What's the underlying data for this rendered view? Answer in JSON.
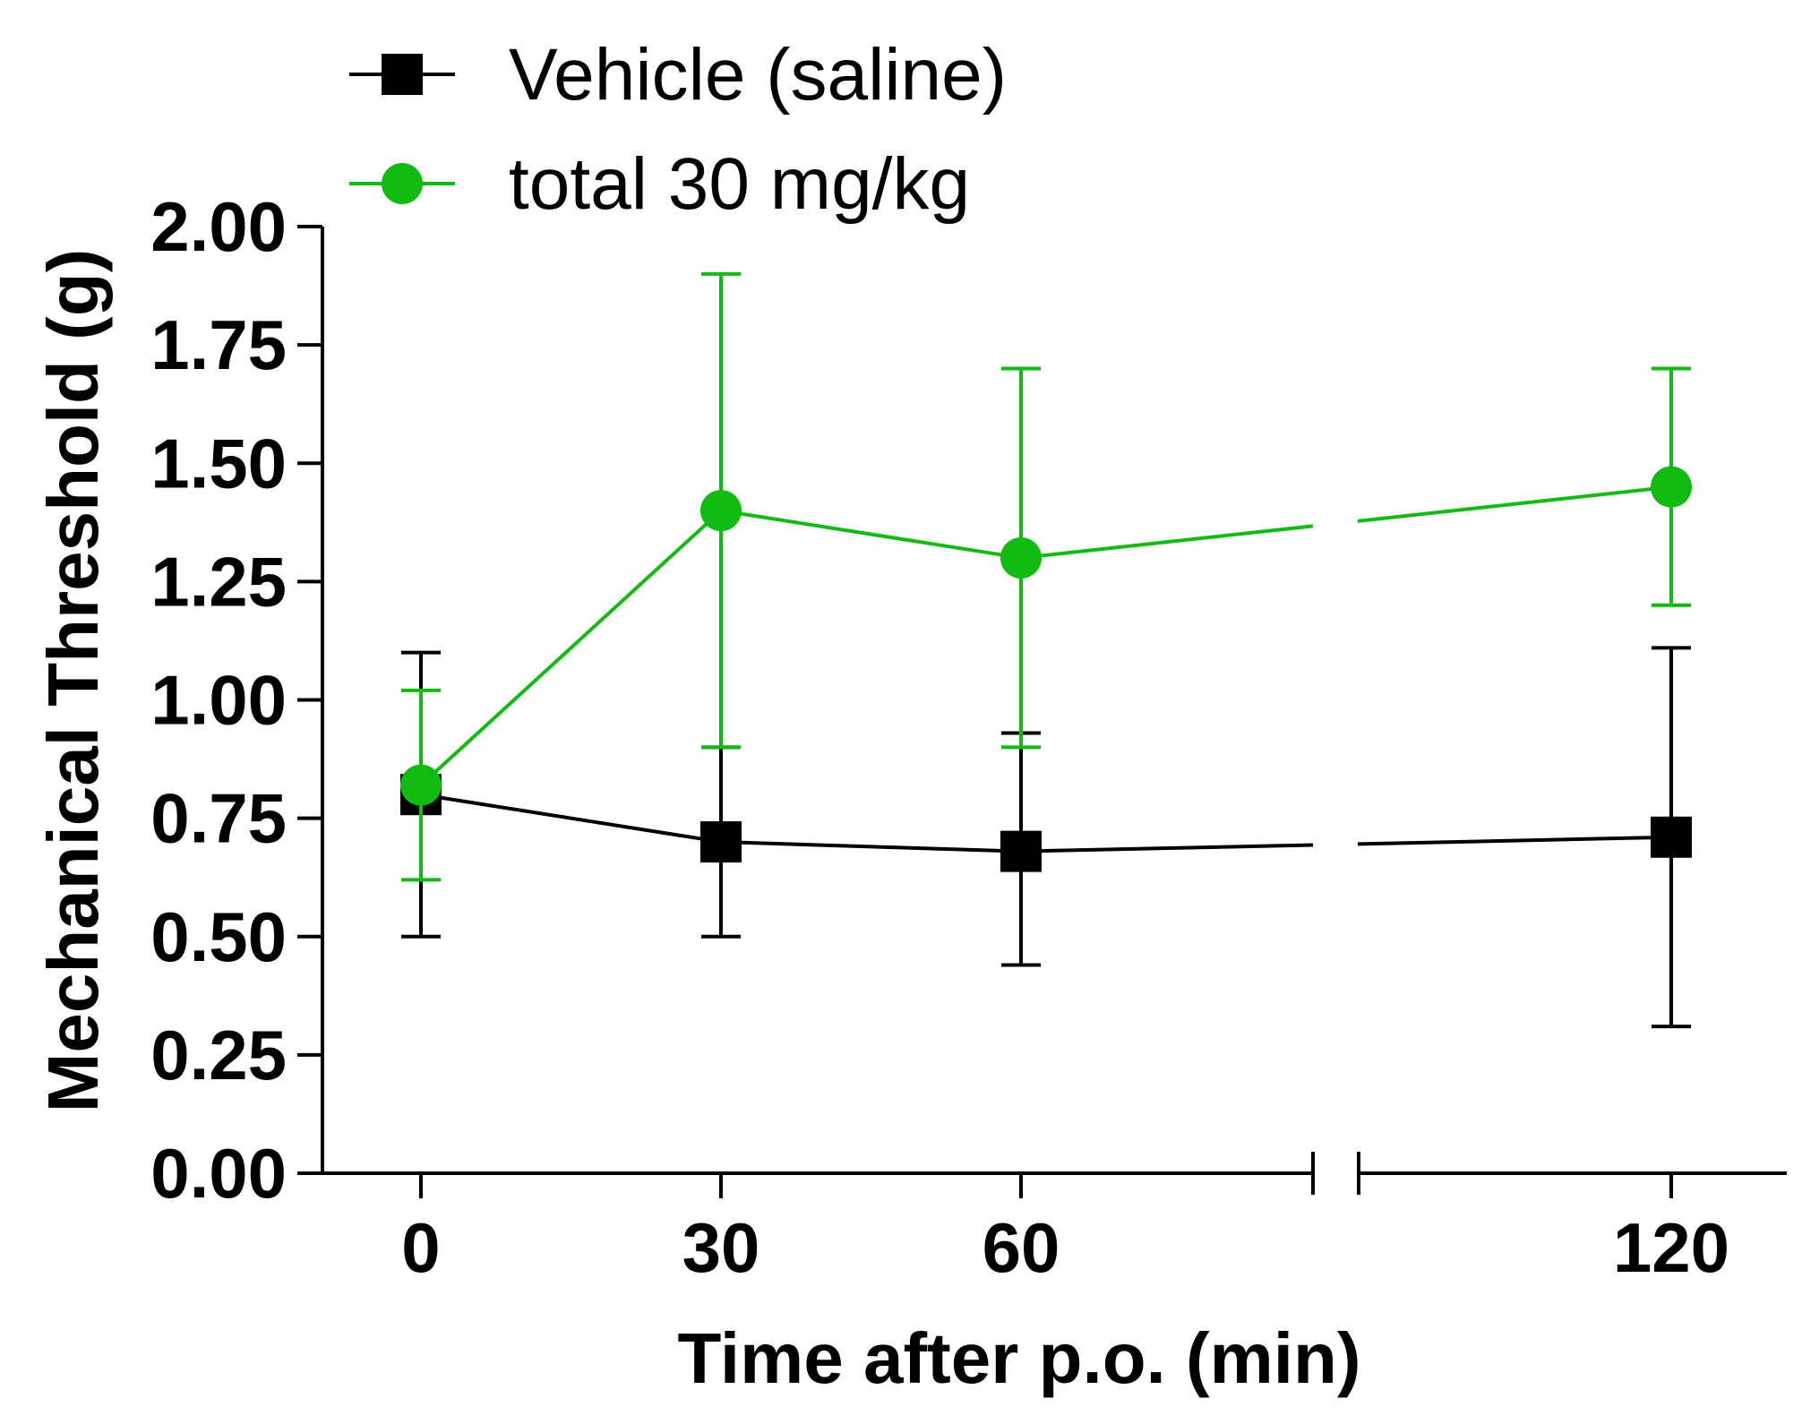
{
  "chart_data": {
    "type": "line",
    "title": "",
    "xlabel": "Time after p.o. (min)",
    "ylabel": "Mechanical Threshold (g)",
    "x": [
      0,
      30,
      60,
      120
    ],
    "x_tick_labels": [
      "0",
      "30",
      "60",
      "120"
    ],
    "x_axis_break": true,
    "ylim": [
      0,
      2
    ],
    "y_ticks": [
      0,
      0.25,
      0.5,
      0.75,
      1.0,
      1.25,
      1.5,
      1.75,
      2.0
    ],
    "y_tick_labels": [
      "0.00",
      "0.25",
      "0.50",
      "0.75",
      "1.00",
      "1.25",
      "1.50",
      "1.75",
      "2.00"
    ],
    "legend_position": "top-left",
    "series": [
      {
        "name": "Vehicle (saline)",
        "marker": "square",
        "color": "#000000",
        "values": [
          0.8,
          0.7,
          0.68,
          0.71
        ],
        "error_upper": [
          1.1,
          0.9,
          0.93,
          1.11
        ],
        "error_lower": [
          0.5,
          0.5,
          0.44,
          0.31
        ]
      },
      {
        "name": "total 30 mg/kg",
        "marker": "circle",
        "color": "#11bb11",
        "values": [
          0.82,
          1.4,
          1.3,
          1.45
        ],
        "error_upper": [
          1.02,
          1.9,
          1.7,
          1.7
        ],
        "error_lower": [
          0.62,
          0.9,
          0.9,
          1.2
        ]
      }
    ]
  }
}
